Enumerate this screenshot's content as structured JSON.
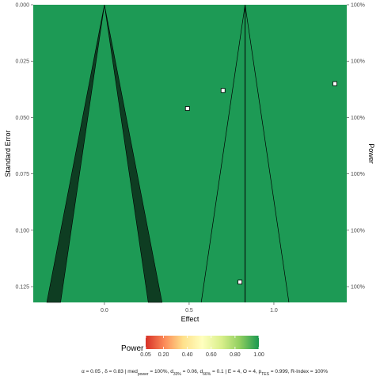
{
  "chart_data": {
    "type": "funnel",
    "xlabel": "Effect",
    "ylabel": "Standard Error",
    "y2label": "Power",
    "xlim": [
      -0.42,
      1.43
    ],
    "ylim": [
      0.132,
      0.0
    ],
    "x_ticks": [
      0.0,
      0.5,
      1.0
    ],
    "x_tick_labels": [
      "0.0",
      "0.5",
      "1.0"
    ],
    "y_ticks": [
      0.0,
      0.025,
      0.05,
      0.075,
      0.1,
      0.125
    ],
    "y_tick_labels": [
      "0.000",
      "0.025",
      "0.050",
      "0.075",
      "0.100",
      "0.125"
    ],
    "y2_tick_labels": [
      "100%",
      "100%",
      "100%",
      "100%",
      "100%",
      "100%"
    ],
    "background_power": 1.0,
    "null_effect": 0.0,
    "mean_effect": 0.83,
    "alpha": 0.05,
    "points": [
      {
        "effect": 0.49,
        "se": 0.046
      },
      {
        "effect": 0.7,
        "se": 0.038
      },
      {
        "effect": 1.36,
        "se": 0.035
      },
      {
        "effect": 0.8,
        "se": 0.123
      }
    ],
    "colors": {
      "background": "#1d9a55",
      "significance": "#0e3d22",
      "legend_gradient": [
        "#d73027",
        "#fc8d59",
        "#fee08b",
        "#ffffbf",
        "#d9ef8b",
        "#91cf60",
        "#1a9850"
      ]
    },
    "legend": {
      "title": "Power",
      "labels": [
        "0.05",
        "0.20",
        "0.40",
        "0.60",
        "0.80",
        "1.00"
      ],
      "values": [
        0.05,
        0.2,
        0.4,
        0.6,
        0.8,
        1.0
      ]
    },
    "footnote": {
      "alpha": "α = 0.05",
      "delta": "δ = 0.83",
      "med_power_main": "med",
      "med_power_sub": "power",
      "med_power_val": " = 100%,",
      "d33_main": "d",
      "d33_sub": "33%",
      "d33_val": " = 0.06,",
      "d66_main": "d",
      "d66_sub": "66%",
      "d66_val": " = 0.1 | E = 4, O = 4, p",
      "ptes_sub": "TES",
      "ptes_val": " = 0.999, R-Index = 100%"
    }
  }
}
